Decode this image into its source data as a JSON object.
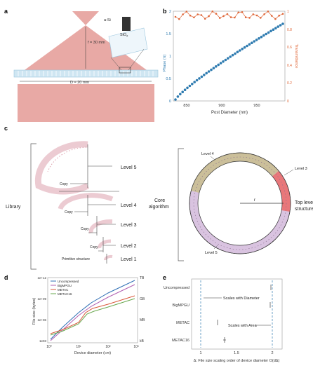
{
  "panel_a": {
    "label": "a",
    "sin_label": "a-Si",
    "sio2_label": "SiO",
    "sio2_sub": "2",
    "focal_label": "f = 30 mm",
    "diameter_label": "D = 20 mm"
  },
  "panel_b": {
    "label": "b",
    "ylabel_left": "Phase (π)",
    "ylabel_right": "Transmittance",
    "xlabel": "Post Diameter (nm)",
    "xticks": [
      "850",
      "900",
      "950"
    ],
    "yticks_left": [
      "0",
      "0.5",
      "1",
      "1.5",
      "2"
    ],
    "yticks_right": [
      "0",
      "0.2",
      "0.4",
      "0.6",
      "0.8",
      "1"
    ]
  },
  "panel_c": {
    "label": "c",
    "library": "Library",
    "core_algorithm": "Core\nalgorithm",
    "level5": "Level 5",
    "level4": "Level 4",
    "level3": "Level 3",
    "level2": "Level 2",
    "level1": "Level 1",
    "primitive": "Primitive structure",
    "copy": "Copy",
    "ring_level4": "Level 4",
    "ring_level3": "Level 3",
    "ring_level5": "Level 5",
    "ring_r": "r",
    "top_level": "Top level\nstructure"
  },
  "panel_d": {
    "label": "d",
    "ylabel": "File size (bytes)",
    "xlabel": "Device diameter (cm)",
    "yticks": [
      "1e+12",
      "1e+09",
      "1e+06",
      "1e03"
    ],
    "yticks_right": [
      "TB",
      "GB",
      "MB",
      "kB"
    ],
    "xticks": [
      "10⁰",
      "10¹",
      "10²",
      "10³"
    ],
    "legend": [
      "Uncompressed",
      "BigMPGU",
      "METAC",
      "METAC16"
    ],
    "colors": {
      "uncompressed": "#2f6fb5",
      "bigmpgu": "#b05fb0",
      "metac": "#d9573a",
      "metac16": "#6aa84f"
    }
  },
  "panel_e": {
    "label": "e",
    "rows": [
      "Uncompressed",
      "BigMPGU",
      "METAC",
      "METAC16"
    ],
    "annot1": "Scales with Diameter",
    "annot2": "Scales with Area",
    "xticks": [
      "1",
      "1.5",
      "2"
    ],
    "xlabel": "Δ: File size scaling order of device diameter O(dΔ)"
  },
  "colors": {
    "beam": "#e8a9a5",
    "beam_dark": "#d9827c",
    "phase": "#2e7bb0",
    "transmit": "#e0683a",
    "ring_purple": "#d9c3e0",
    "ring_khaki": "#cbbf9a",
    "ring_red": "#e8777a",
    "lens_blue": "#cfe6f2"
  }
}
